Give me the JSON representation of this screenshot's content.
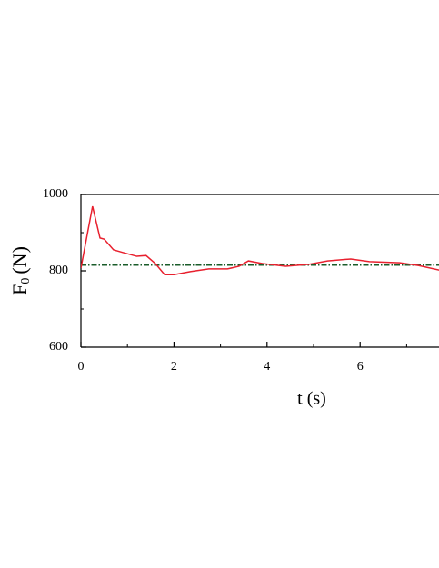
{
  "chart_data": {
    "type": "line",
    "xlabel": "t (s)",
    "ylabel": {
      "symbol": "F",
      "subscript": "0",
      "unit": "(N)"
    },
    "xlim": [
      0,
      7.7
    ],
    "ylim": [
      600,
      1000
    ],
    "xticks": [
      0,
      2,
      4,
      6
    ],
    "yticks": [
      600,
      800,
      1000
    ],
    "xminorticks": [
      1,
      3,
      5,
      7
    ],
    "yminorticks": [
      700,
      900
    ],
    "series": [
      {
        "color": "#e8202e",
        "style": "solid",
        "x": [
          0,
          0.25,
          0.41,
          0.5,
          0.7,
          0.9,
          1.2,
          1.4,
          1.6,
          1.8,
          2.0,
          2.35,
          2.75,
          3.15,
          3.4,
          3.6,
          3.9,
          4.4,
          4.9,
          5.3,
          5.8,
          6.2,
          6.85,
          7.25,
          7.7
        ],
        "values": [
          807,
          969,
          886,
          883,
          855,
          848,
          838,
          840,
          819,
          790,
          790,
          798,
          805,
          805,
          812,
          826,
          819,
          812,
          817,
          826,
          831,
          824,
          821,
          814,
          802
        ]
      },
      {
        "color": "#1a5c2a",
        "style": "dashdot",
        "x": [
          0,
          7.7
        ],
        "values": [
          815,
          815
        ]
      }
    ]
  }
}
